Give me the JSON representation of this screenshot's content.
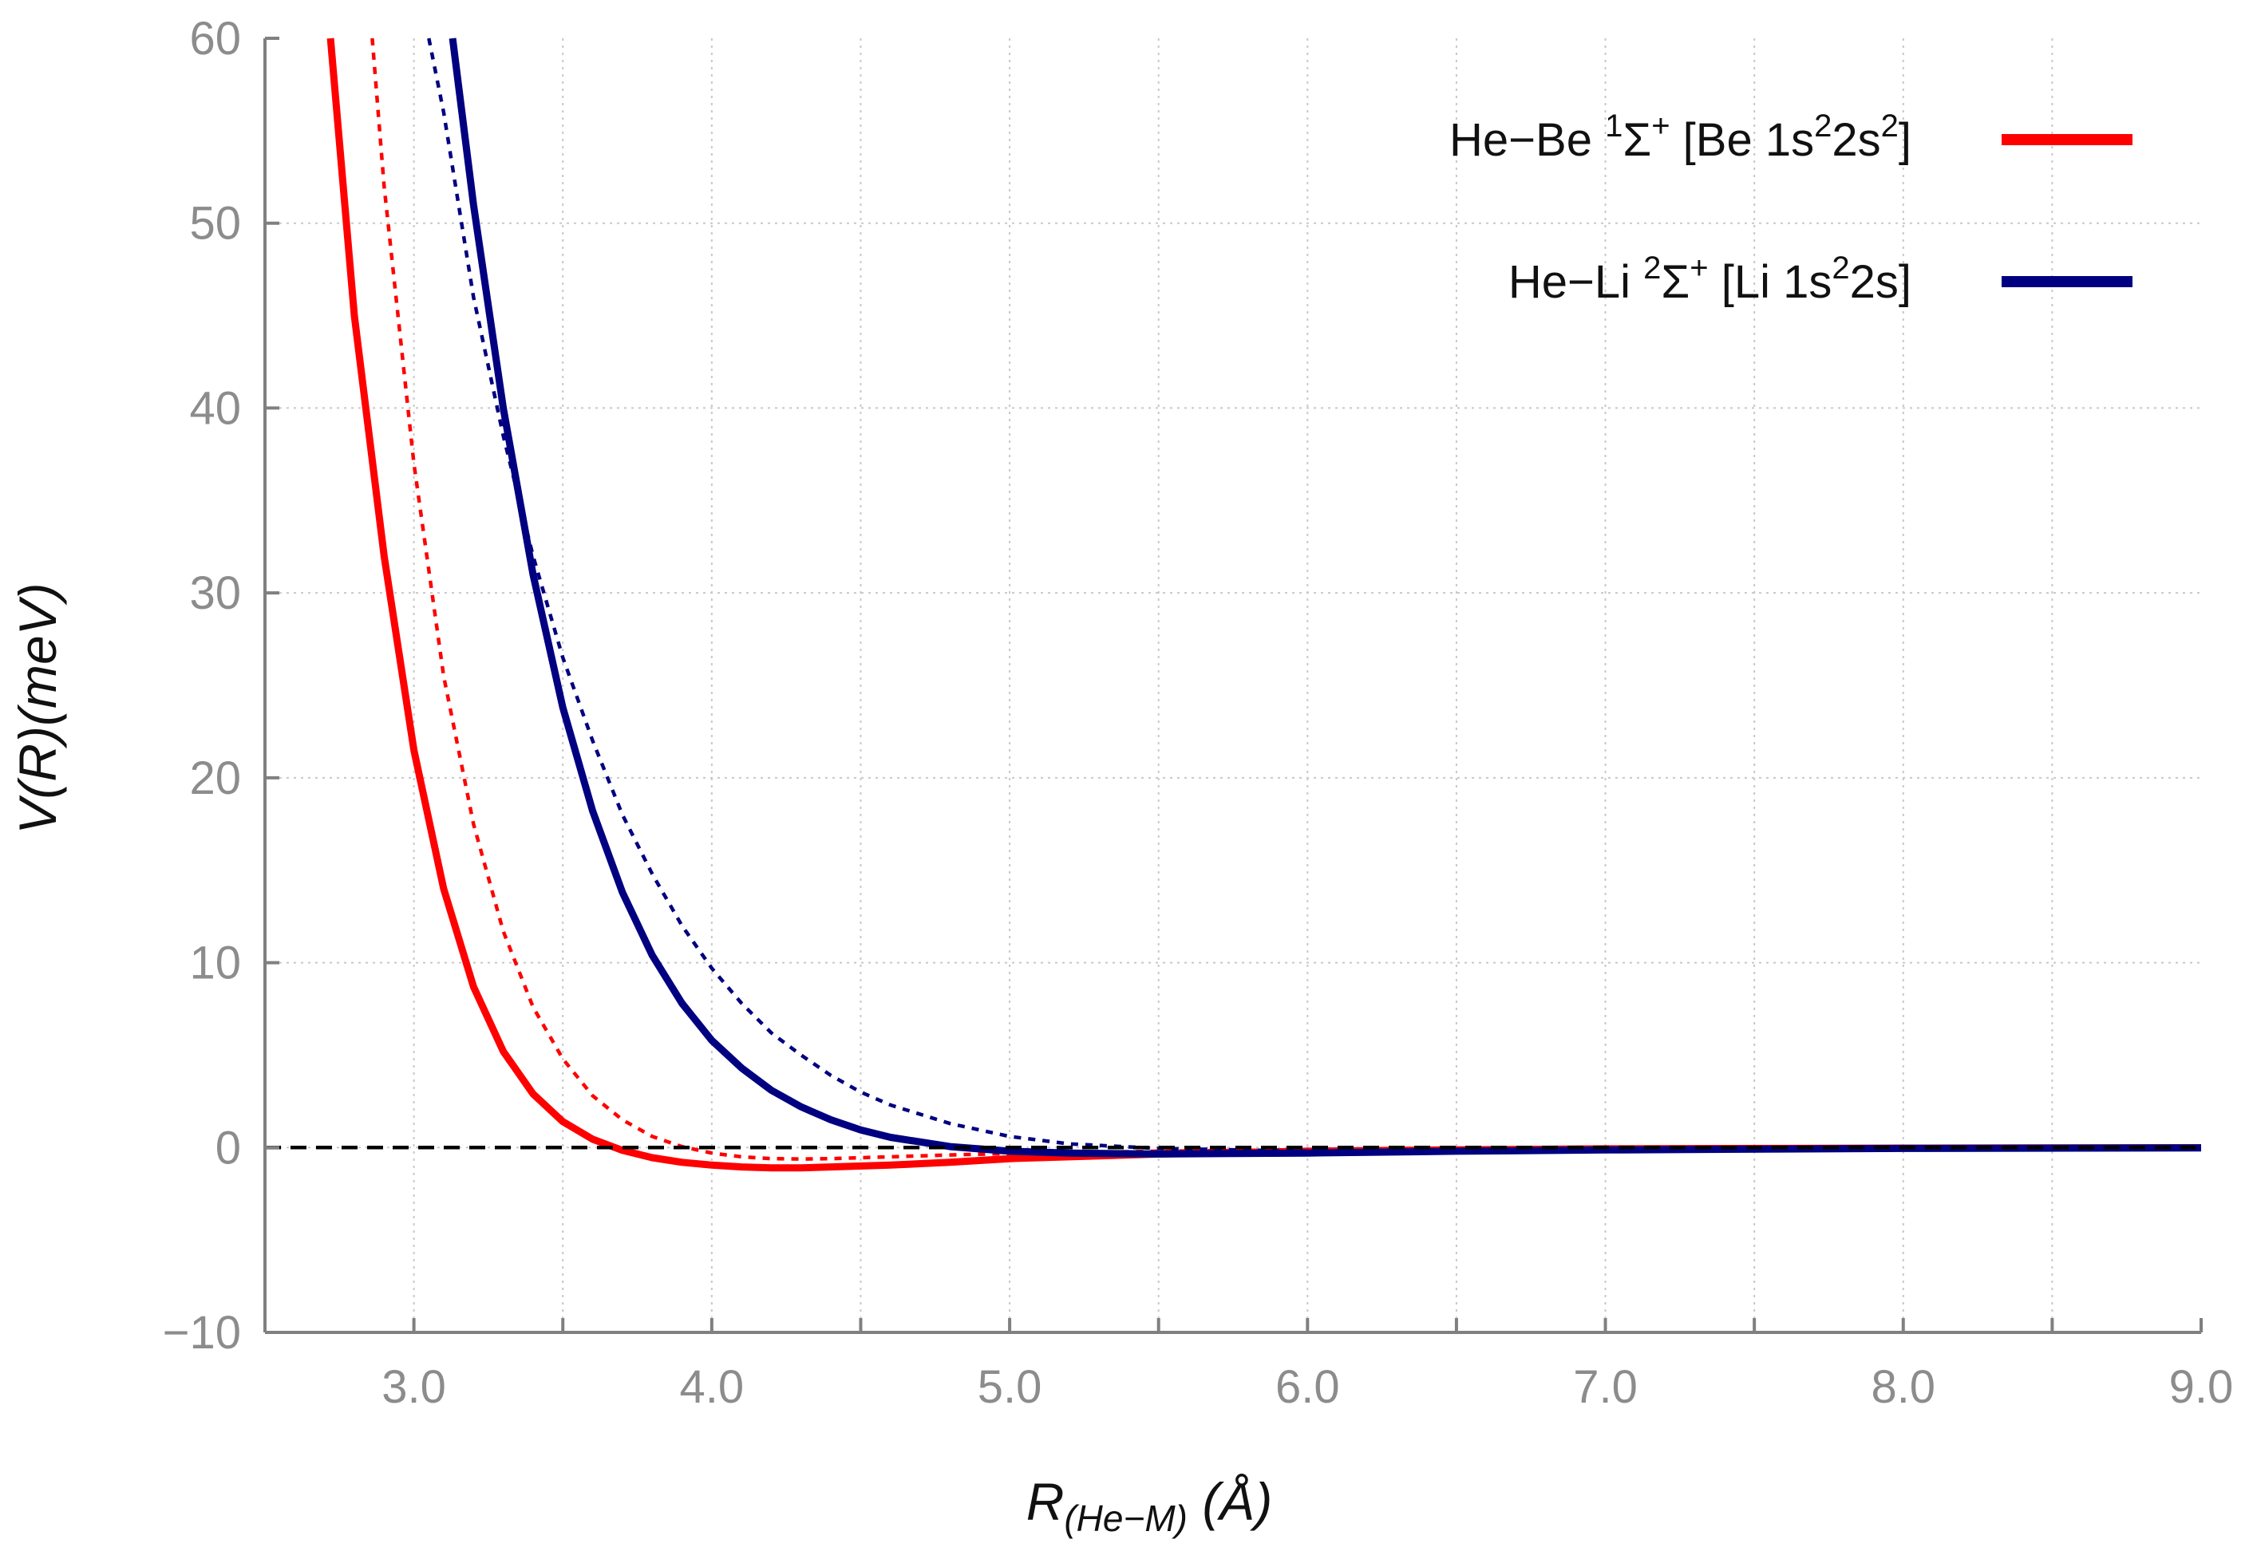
{
  "chart_data": {
    "type": "line",
    "title": "",
    "xlabel": {
      "main": "R",
      "sub": "(He−M)",
      "unit": " (Å)"
    },
    "ylabel": "V(R)(meV)",
    "xlim": [
      2.5,
      9.0
    ],
    "ylim": [
      -10,
      60
    ],
    "xticks": [
      {
        "value": 3.0,
        "label": "3.0"
      },
      {
        "value": 4.0,
        "label": "4.0"
      },
      {
        "value": 5.0,
        "label": "5.0"
      },
      {
        "value": 6.0,
        "label": "6.0"
      },
      {
        "value": 7.0,
        "label": "7.0"
      },
      {
        "value": 8.0,
        "label": "8.0"
      },
      {
        "value": 9.0,
        "label": "9.0"
      }
    ],
    "xminor": [
      3.5,
      4.5,
      5.5,
      6.5,
      7.5,
      8.5
    ],
    "yticks": [
      {
        "value": -10,
        "label": "−10"
      },
      {
        "value": 0,
        "label": "0"
      },
      {
        "value": 10,
        "label": "10"
      },
      {
        "value": 20,
        "label": "20"
      },
      {
        "value": 30,
        "label": "30"
      },
      {
        "value": 40,
        "label": "40"
      },
      {
        "value": 50,
        "label": "50"
      },
      {
        "value": 60,
        "label": "60"
      }
    ],
    "grid": true,
    "legend_position": "top-right",
    "legend": [
      {
        "name": "He−Be ¹Σ⁺ [Be 1s²2s²]",
        "color": "#ff0000",
        "parts": [
          {
            "t": "He−Be "
          },
          {
            "t": "1",
            "s": "sup"
          },
          {
            "t": "Σ"
          },
          {
            "t": "+",
            "s": "sup"
          },
          {
            "t": " [Be 1s"
          },
          {
            "t": "2",
            "s": "sup"
          },
          {
            "t": "2s"
          },
          {
            "t": "2",
            "s": "sup"
          },
          {
            "t": "]"
          }
        ]
      },
      {
        "name": "He−Li ²Σ⁺ [Li 1s²2s]",
        "color": "#000080",
        "parts": [
          {
            "t": "He−Li "
          },
          {
            "t": "2",
            "s": "sup"
          },
          {
            "t": "Σ"
          },
          {
            "t": "+",
            "s": "sup"
          },
          {
            "t": " [Li 1s"
          },
          {
            "t": "2",
            "s": "sup"
          },
          {
            "t": "2s]"
          }
        ]
      }
    ],
    "series": [
      {
        "color": "#ff0000",
        "style": "solid",
        "x": [
          2.72,
          2.8,
          2.9,
          3.0,
          3.1,
          3.2,
          3.3,
          3.4,
          3.5,
          3.6,
          3.7,
          3.8,
          3.9,
          4.0,
          4.1,
          4.2,
          4.3,
          4.4,
          4.6,
          4.8,
          5.0,
          5.5,
          6.0,
          6.5,
          7.0,
          8.0,
          9.0
        ],
        "y": [
          60,
          45,
          32,
          21.5,
          14,
          8.7,
          5.2,
          2.9,
          1.4,
          0.45,
          -0.15,
          -0.55,
          -0.8,
          -0.95,
          -1.05,
          -1.1,
          -1.1,
          -1.05,
          -0.95,
          -0.8,
          -0.6,
          -0.35,
          -0.2,
          -0.12,
          -0.07,
          -0.03,
          -0.01
        ]
      },
      {
        "color": "#ff0000",
        "style": "dotted",
        "x": [
          2.86,
          2.9,
          3.0,
          3.1,
          3.2,
          3.3,
          3.4,
          3.5,
          3.6,
          3.7,
          3.8,
          3.9,
          4.0,
          4.1,
          4.2,
          4.3,
          4.4,
          4.6,
          4.8,
          5.0,
          5.5,
          6.0,
          7.0,
          8.0,
          9.0
        ],
        "y": [
          60,
          52,
          37,
          25.5,
          17.5,
          11.7,
          7.6,
          4.8,
          2.8,
          1.5,
          0.6,
          0.05,
          -0.3,
          -0.5,
          -0.6,
          -0.62,
          -0.6,
          -0.5,
          -0.4,
          -0.32,
          -0.2,
          -0.12,
          -0.05,
          -0.02,
          -0.01
        ]
      },
      {
        "color": "#000080",
        "style": "solid",
        "x": [
          3.13,
          3.2,
          3.3,
          3.4,
          3.5,
          3.6,
          3.7,
          3.8,
          3.9,
          4.0,
          4.1,
          4.2,
          4.3,
          4.4,
          4.5,
          4.6,
          4.8,
          5.0,
          5.2,
          5.5,
          6.0,
          6.5,
          7.0,
          8.0,
          9.0
        ],
        "y": [
          60,
          51,
          40,
          31,
          23.8,
          18.2,
          13.8,
          10.4,
          7.8,
          5.8,
          4.3,
          3.1,
          2.2,
          1.5,
          0.95,
          0.55,
          0.05,
          -0.2,
          -0.3,
          -0.35,
          -0.3,
          -0.2,
          -0.13,
          -0.05,
          -0.02
        ]
      },
      {
        "color": "#000080",
        "style": "dotted",
        "x": [
          3.05,
          3.1,
          3.2,
          3.3,
          3.4,
          3.5,
          3.6,
          3.7,
          3.8,
          3.9,
          4.0,
          4.1,
          4.2,
          4.3,
          4.4,
          4.5,
          4.6,
          4.8,
          5.0,
          5.2,
          5.5,
          6.0,
          7.0,
          8.0,
          9.0
        ],
        "y": [
          60,
          56,
          46,
          38.5,
          32,
          26.5,
          22,
          18,
          14.8,
          12,
          9.7,
          7.8,
          6.2,
          5.0,
          3.9,
          3.0,
          2.3,
          1.3,
          0.6,
          0.2,
          -0.05,
          -0.2,
          -0.1,
          -0.04,
          -0.01
        ]
      },
      {
        "color": "#000000",
        "style": "dashed",
        "x": [
          2.5,
          9.0
        ],
        "y": [
          0,
          0
        ]
      }
    ]
  }
}
